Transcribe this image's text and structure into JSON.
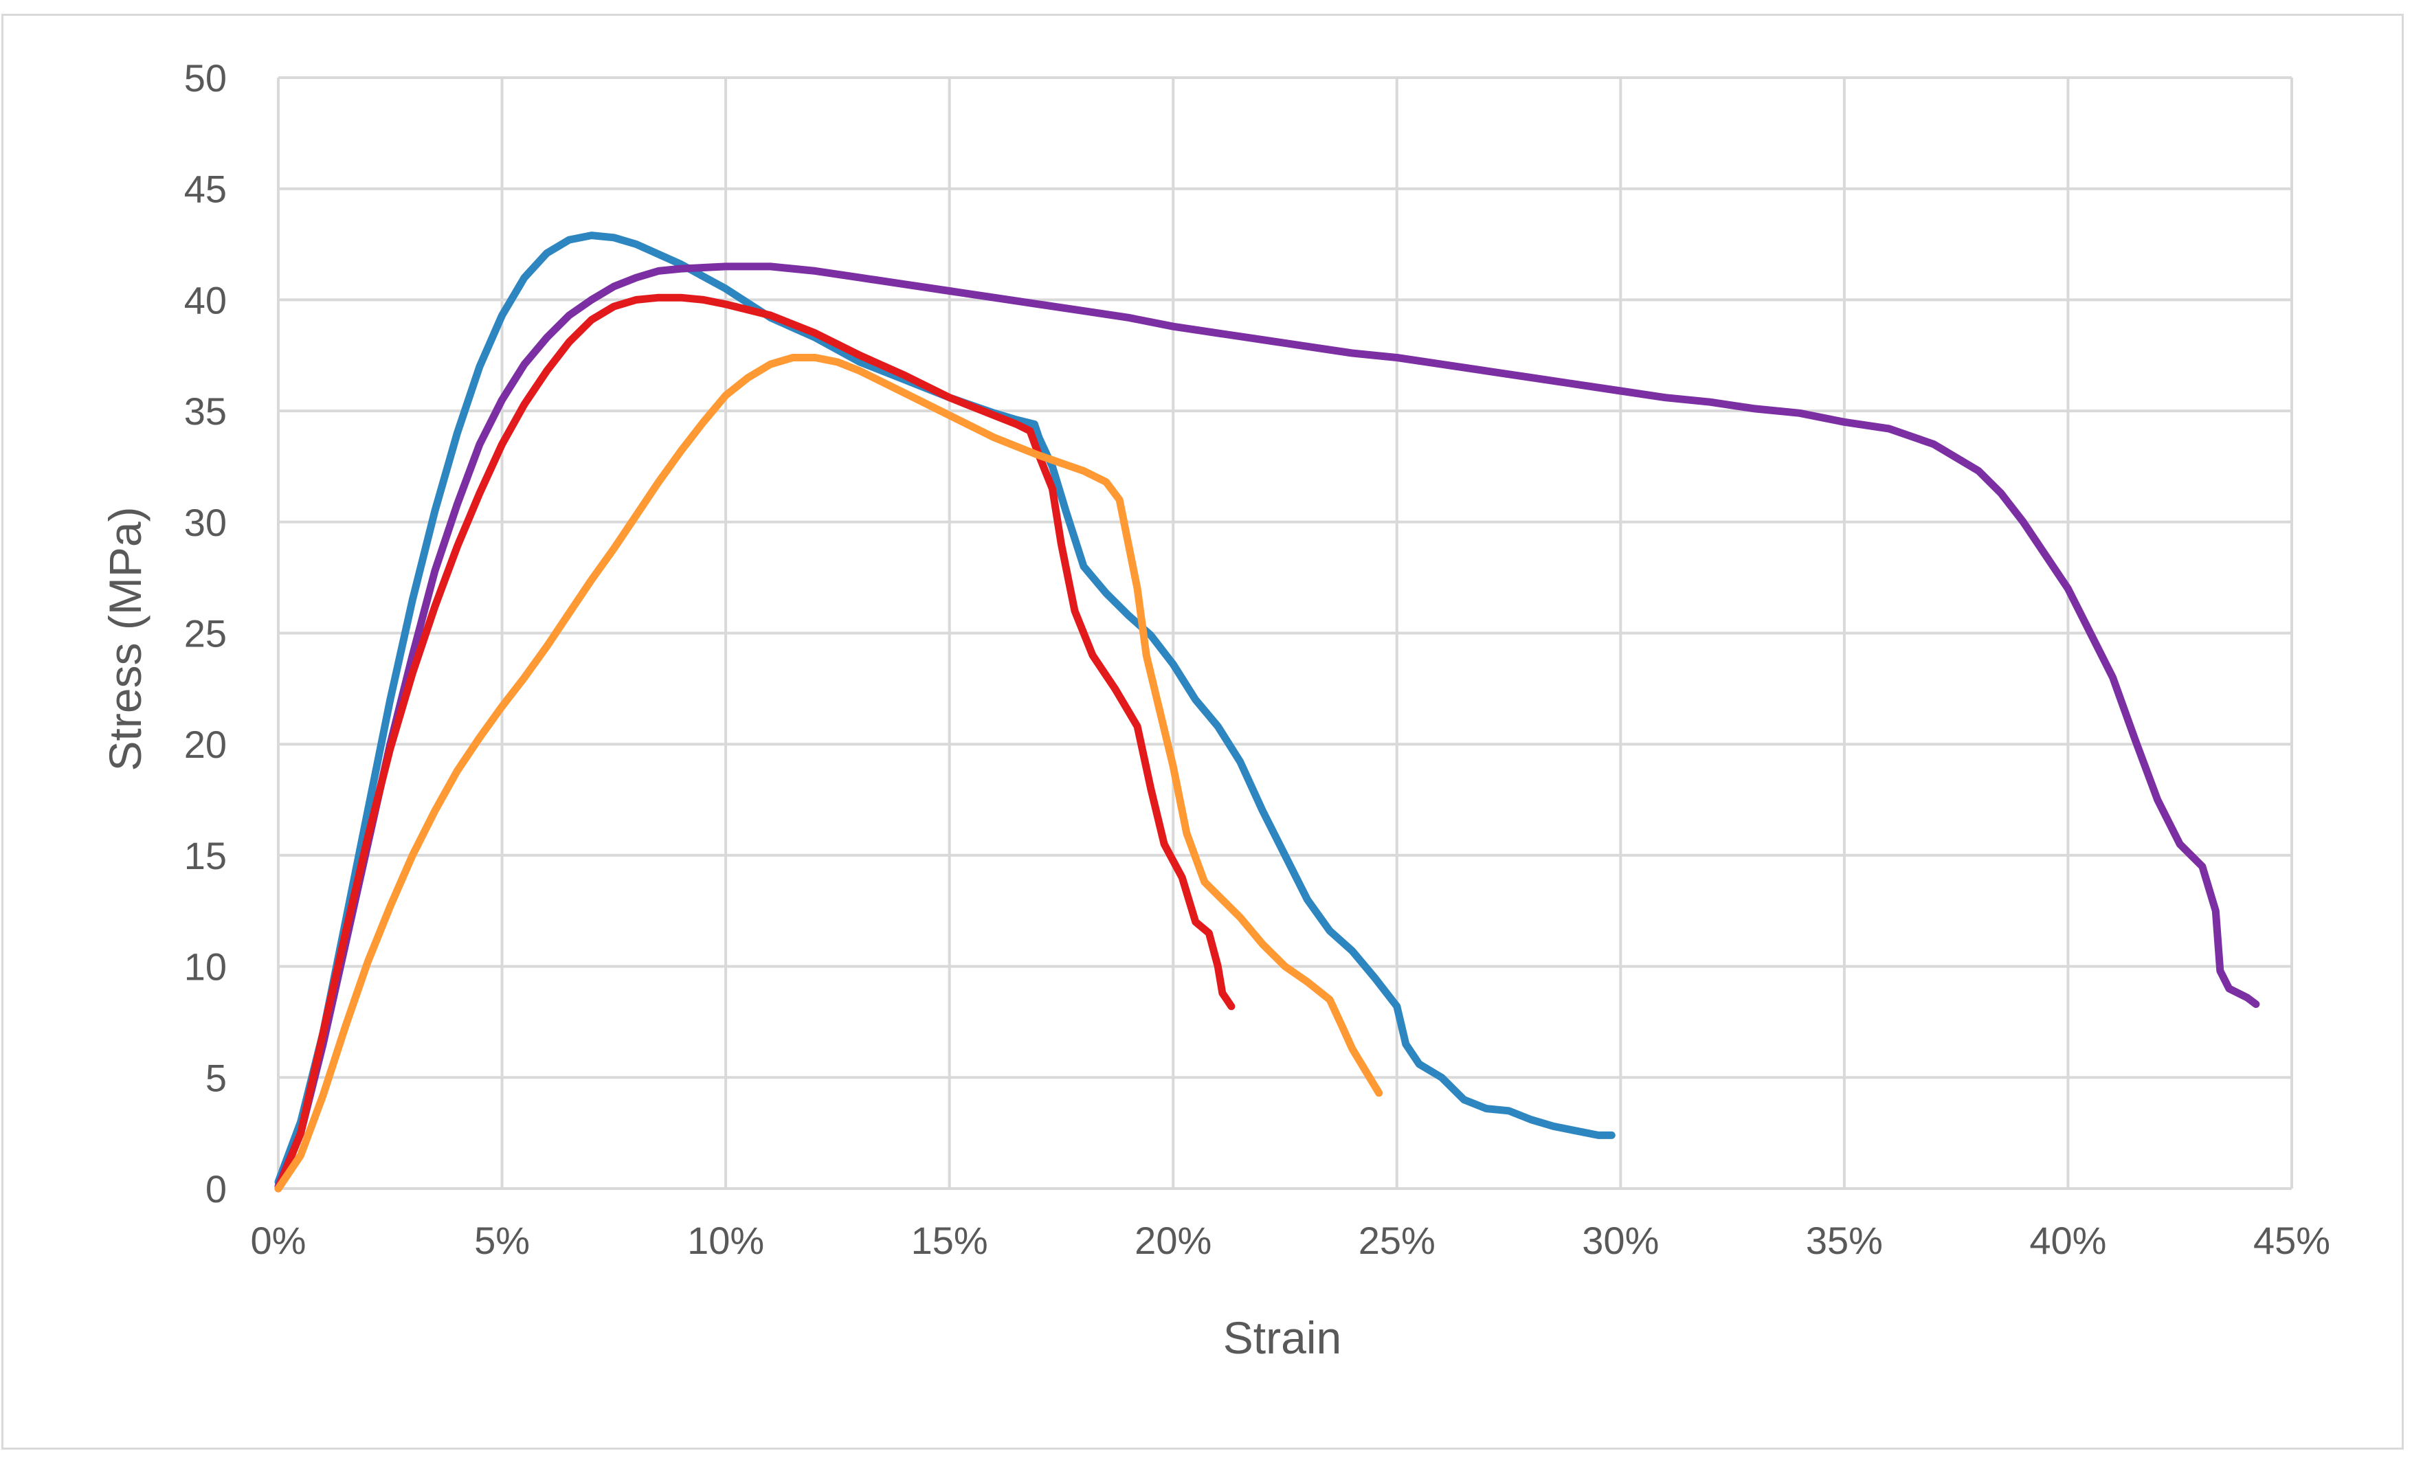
{
  "chart_data": {
    "type": "line",
    "title": "",
    "xlabel": "Strain",
    "ylabel": "Stress (MPa)",
    "xlim": [
      0,
      45
    ],
    "ylim": [
      0,
      50
    ],
    "x_unit": "%",
    "grid": true,
    "legend": "none",
    "x_ticks": [
      "0%",
      "5%",
      "10%",
      "15%",
      "20%",
      "25%",
      "30%",
      "35%",
      "40%",
      "45%"
    ],
    "y_ticks": [
      "0",
      "5",
      "10",
      "15",
      "20",
      "25",
      "30",
      "35",
      "40",
      "45",
      "50"
    ],
    "series": [
      {
        "name": "blue",
        "color": "#2e86c1",
        "points": [
          [
            0,
            0.3
          ],
          [
            0.5,
            3
          ],
          [
            1,
            7
          ],
          [
            1.5,
            12
          ],
          [
            2,
            17
          ],
          [
            2.5,
            22
          ],
          [
            3,
            26.5
          ],
          [
            3.5,
            30.5
          ],
          [
            4,
            34
          ],
          [
            4.5,
            37
          ],
          [
            5,
            39.3
          ],
          [
            5.5,
            41
          ],
          [
            6,
            42.1
          ],
          [
            6.5,
            42.7
          ],
          [
            7,
            42.9
          ],
          [
            7.5,
            42.8
          ],
          [
            8,
            42.5
          ],
          [
            9,
            41.6
          ],
          [
            10,
            40.5
          ],
          [
            11,
            39.2
          ],
          [
            12,
            38.3
          ],
          [
            13,
            37.2
          ],
          [
            14,
            36.4
          ],
          [
            15,
            35.6
          ],
          [
            16,
            34.9
          ],
          [
            16.5,
            34.6
          ],
          [
            16.9,
            34.4
          ],
          [
            17,
            33.8
          ],
          [
            17.3,
            32.5
          ],
          [
            17.6,
            30.5
          ],
          [
            18,
            28
          ],
          [
            18.5,
            26.8
          ],
          [
            19,
            25.8
          ],
          [
            19.5,
            24.9
          ],
          [
            20,
            23.6
          ],
          [
            20.5,
            22
          ],
          [
            21,
            20.8
          ],
          [
            21.5,
            19.2
          ],
          [
            22,
            17
          ],
          [
            22.5,
            15
          ],
          [
            23,
            13
          ],
          [
            23.5,
            11.6
          ],
          [
            24,
            10.7
          ],
          [
            24.5,
            9.5
          ],
          [
            25,
            8.2
          ],
          [
            25.2,
            6.5
          ],
          [
            25.5,
            5.6
          ],
          [
            26,
            5
          ],
          [
            26.5,
            4
          ],
          [
            27,
            3.6
          ],
          [
            27.5,
            3.5
          ],
          [
            28,
            3.1
          ],
          [
            28.5,
            2.8
          ],
          [
            29,
            2.6
          ],
          [
            29.5,
            2.4
          ],
          [
            29.8,
            2.4
          ]
        ]
      },
      {
        "name": "purple",
        "color": "#7b2fa3",
        "points": [
          [
            0,
            0.1
          ],
          [
            0.5,
            2.5
          ],
          [
            1,
            6.5
          ],
          [
            1.5,
            11
          ],
          [
            2,
            15.5
          ],
          [
            2.5,
            20
          ],
          [
            3,
            24
          ],
          [
            3.5,
            27.8
          ],
          [
            4,
            30.8
          ],
          [
            4.5,
            33.5
          ],
          [
            5,
            35.5
          ],
          [
            5.5,
            37.1
          ],
          [
            6,
            38.3
          ],
          [
            6.5,
            39.3
          ],
          [
            7,
            40
          ],
          [
            7.5,
            40.6
          ],
          [
            8,
            41
          ],
          [
            8.5,
            41.3
          ],
          [
            9,
            41.4
          ],
          [
            10,
            41.5
          ],
          [
            11,
            41.5
          ],
          [
            12,
            41.3
          ],
          [
            13,
            41
          ],
          [
            14,
            40.7
          ],
          [
            15,
            40.4
          ],
          [
            16,
            40.1
          ],
          [
            17,
            39.8
          ],
          [
            18,
            39.5
          ],
          [
            19,
            39.2
          ],
          [
            20,
            38.8
          ],
          [
            21,
            38.5
          ],
          [
            22,
            38.2
          ],
          [
            23,
            37.9
          ],
          [
            24,
            37.6
          ],
          [
            25,
            37.4
          ],
          [
            26,
            37.1
          ],
          [
            27,
            36.8
          ],
          [
            28,
            36.5
          ],
          [
            29,
            36.2
          ],
          [
            30,
            35.9
          ],
          [
            31,
            35.6
          ],
          [
            32,
            35.4
          ],
          [
            33,
            35.1
          ],
          [
            34,
            34.9
          ],
          [
            35,
            34.5
          ],
          [
            36,
            34.2
          ],
          [
            37,
            33.5
          ],
          [
            38,
            32.3
          ],
          [
            38.5,
            31.3
          ],
          [
            39,
            30
          ],
          [
            39.5,
            28.5
          ],
          [
            40,
            27
          ],
          [
            40.5,
            25
          ],
          [
            41,
            23
          ],
          [
            41.5,
            20.2
          ],
          [
            42,
            17.5
          ],
          [
            42.5,
            15.5
          ],
          [
            43,
            14.5
          ],
          [
            43.3,
            12.5
          ],
          [
            43.4,
            9.8
          ],
          [
            43.6,
            9
          ],
          [
            44,
            8.6
          ],
          [
            44.2,
            8.3
          ]
        ]
      },
      {
        "name": "red",
        "color": "#e31a1c",
        "points": [
          [
            0,
            0
          ],
          [
            0.5,
            2.5
          ],
          [
            1,
            7
          ],
          [
            1.5,
            11.5
          ],
          [
            2,
            15.8
          ],
          [
            2.5,
            19.8
          ],
          [
            3,
            23.2
          ],
          [
            3.5,
            26.2
          ],
          [
            4,
            28.9
          ],
          [
            4.5,
            31.3
          ],
          [
            5,
            33.5
          ],
          [
            5.5,
            35.3
          ],
          [
            6,
            36.8
          ],
          [
            6.5,
            38.1
          ],
          [
            7,
            39.1
          ],
          [
            7.5,
            39.7
          ],
          [
            8,
            40
          ],
          [
            8.5,
            40.1
          ],
          [
            9,
            40.1
          ],
          [
            9.5,
            40
          ],
          [
            10,
            39.8
          ],
          [
            11,
            39.3
          ],
          [
            12,
            38.5
          ],
          [
            13,
            37.5
          ],
          [
            14,
            36.6
          ],
          [
            15,
            35.6
          ],
          [
            16,
            34.8
          ],
          [
            16.5,
            34.4
          ],
          [
            16.8,
            34.1
          ],
          [
            17,
            33
          ],
          [
            17.3,
            31.5
          ],
          [
            17.5,
            29
          ],
          [
            17.8,
            26
          ],
          [
            18.2,
            24
          ],
          [
            18.7,
            22.5
          ],
          [
            19.2,
            20.8
          ],
          [
            19.5,
            18
          ],
          [
            19.8,
            15.5
          ],
          [
            20.2,
            14
          ],
          [
            20.5,
            12
          ],
          [
            20.8,
            11.5
          ],
          [
            21,
            10
          ],
          [
            21.1,
            8.8
          ],
          [
            21.3,
            8.2
          ]
        ]
      },
      {
        "name": "orange",
        "color": "#ff9933",
        "points": [
          [
            0,
            0
          ],
          [
            0.5,
            1.5
          ],
          [
            1,
            4.2
          ],
          [
            1.5,
            7.3
          ],
          [
            2,
            10.2
          ],
          [
            2.5,
            12.7
          ],
          [
            3,
            15
          ],
          [
            3.5,
            17
          ],
          [
            4,
            18.8
          ],
          [
            4.5,
            20.3
          ],
          [
            5,
            21.7
          ],
          [
            5.5,
            23
          ],
          [
            6,
            24.4
          ],
          [
            6.5,
            25.9
          ],
          [
            7,
            27.4
          ],
          [
            7.5,
            28.8
          ],
          [
            8,
            30.3
          ],
          [
            8.5,
            31.8
          ],
          [
            9,
            33.2
          ],
          [
            9.5,
            34.5
          ],
          [
            10,
            35.7
          ],
          [
            10.5,
            36.5
          ],
          [
            11,
            37.1
          ],
          [
            11.5,
            37.4
          ],
          [
            12,
            37.4
          ],
          [
            12.5,
            37.2
          ],
          [
            13,
            36.8
          ],
          [
            14,
            35.8
          ],
          [
            15,
            34.8
          ],
          [
            16,
            33.8
          ],
          [
            17,
            33
          ],
          [
            18,
            32.3
          ],
          [
            18.5,
            31.8
          ],
          [
            18.8,
            31
          ],
          [
            19,
            29
          ],
          [
            19.2,
            27
          ],
          [
            19.4,
            24
          ],
          [
            19.7,
            21.5
          ],
          [
            20,
            19
          ],
          [
            20.3,
            16
          ],
          [
            20.7,
            13.8
          ],
          [
            21.5,
            12.2
          ],
          [
            22,
            11
          ],
          [
            22.5,
            10
          ],
          [
            23,
            9.3
          ],
          [
            23.5,
            8.5
          ],
          [
            23.8,
            7.2
          ],
          [
            24,
            6.3
          ],
          [
            24.3,
            5.3
          ],
          [
            24.6,
            4.3
          ]
        ]
      }
    ]
  }
}
